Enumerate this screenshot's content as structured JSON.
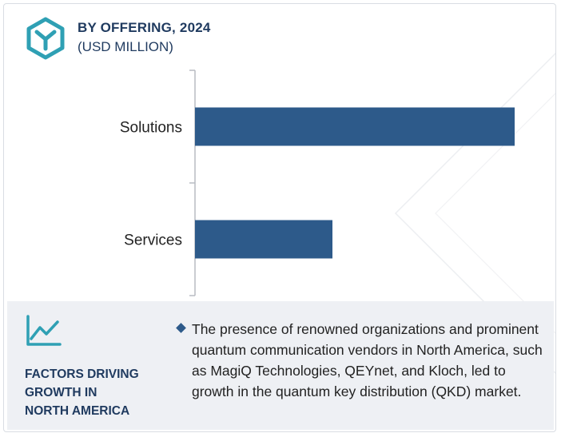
{
  "header": {
    "title": "BY OFFERING, 2024",
    "subtitle": "(USD MILLION)"
  },
  "chart_data": {
    "type": "bar",
    "orientation": "horizontal",
    "title": "BY OFFERING, 2024",
    "subtitle": "(USD MILLION)",
    "categories": [
      "Solutions",
      "Services"
    ],
    "values": [
      100,
      43
    ],
    "value_scale": "relative (no axis values printed; Solutions = 100)",
    "xlabel": "",
    "ylabel": "",
    "xlim": [
      0,
      100
    ],
    "grid": false,
    "legend": "none",
    "bar_color": "#2d5a8a"
  },
  "footer": {
    "icon": "trend-line-icon",
    "heading_lines": [
      "FACTORS DRIVING",
      "GROWTH IN",
      "NORTH AMERICA"
    ],
    "bullet_text": "The presence of renowned organizations and prominent quantum communication vendors in North America, such as MagiQ Technologies, QEYnet, and Kloch, led to growth in the quantum key distribution (QKD) market."
  },
  "colors": {
    "brand_dark": "#1f3a5f",
    "accent_teal": "#2fa0b4",
    "bar": "#2d5a8a",
    "footer_bg": "#eef0f4"
  }
}
